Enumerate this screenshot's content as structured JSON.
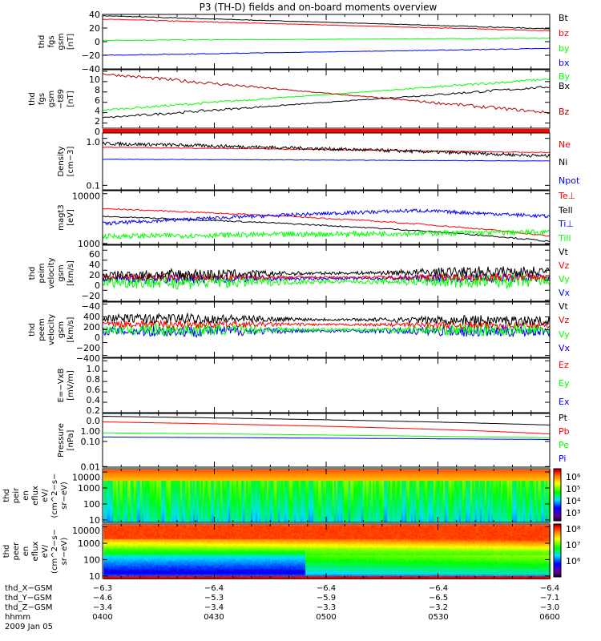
{
  "title": "P3 (TH-D) fields and on-board moments overview",
  "chart_data": {
    "type": "line",
    "title": "P3 (TH-D) fields and on-board moments overview",
    "x_ticks": [
      "0400",
      "0430",
      "0500",
      "0530",
      "0600"
    ],
    "panels": [
      {
        "ylabel": [
          "thd",
          "fgs",
          "gsm",
          "[nT]"
        ],
        "scale": "lin",
        "ylim": [
          -40,
          40
        ],
        "ticks": [
          {
            "v": 40,
            "l": "40"
          },
          {
            "v": 20,
            "l": "20"
          },
          {
            "v": 0,
            "l": "0"
          },
          {
            "v": -20,
            "l": "−20"
          },
          {
            "v": -40,
            "l": "−40"
          }
        ],
        "series": [
          {
            "name": "Bt",
            "color": "#000000",
            "start": 38,
            "end": 19,
            "noise": 0.4
          },
          {
            "name": "bz",
            "color": "#ff0000",
            "start": 33,
            "end": 16,
            "noise": 0.4
          },
          {
            "name": "by",
            "color": "#00ff00",
            "start": 2,
            "end": 5,
            "noise": 0.4
          },
          {
            "name": "bx",
            "color": "#0000ff",
            "start": -20,
            "end": -10,
            "noise": 0.4
          }
        ]
      },
      {
        "ylabel": [
          "thd",
          "fgs",
          "gsm",
          "−t89",
          "[nT]"
        ],
        "scale": "lin",
        "ylim": [
          -1,
          10.3
        ],
        "ticks": [
          {
            "v": 10,
            "l": "10"
          },
          {
            "v": 8,
            "l": "8"
          },
          {
            "v": 6,
            "l": "6"
          },
          {
            "v": 4,
            "l": "4"
          },
          {
            "v": 2,
            "l": "2"
          },
          {
            "v": 0,
            "l": "0"
          }
        ],
        "series": [
          {
            "name": "By",
            "color": "#00ff00",
            "start": 2.5,
            "end": 8.5,
            "noise": 0.15
          },
          {
            "name": "Bx",
            "color": "#000000",
            "start": 1,
            "end": 7,
            "noise": 0.15
          },
          {
            "name": "Bz",
            "color": "#b00000",
            "start": 9.5,
            "end": 2,
            "noise": 0.2
          }
        ]
      },
      {
        "ylabel": [
          "Density",
          "[cm−3]"
        ],
        "scale": "log",
        "ylim": [
          0.08,
          1.3
        ],
        "ticks": [
          {
            "v": 1.0,
            "l": "1.0"
          },
          {
            "v": 0.1,
            "l": "0.1"
          }
        ],
        "series": [
          {
            "name": "Ne",
            "color": "#ff0000",
            "start": 0.65,
            "end": 0.5,
            "noise": 0.02
          },
          {
            "name": "Ni",
            "color": "#000000",
            "start": 0.78,
            "end": 0.42,
            "noise": 0.08
          },
          {
            "name": "Npot",
            "color": "#0000ff",
            "start": 0.36,
            "end": 0.33,
            "noise": 0.01
          }
        ]
      },
      {
        "ylabel": [
          "magt3",
          "[eV]"
        ],
        "scale": "log",
        "ylim": [
          960,
          11500
        ],
        "ticks": [
          {
            "v": 10000,
            "l": "10000"
          },
          {
            "v": 1000,
            "l": "1000"
          }
        ],
        "series": [
          {
            "name": "Te⊥",
            "color": "#ff0000",
            "start": 5000,
            "end": 1400,
            "noise": 0.03
          },
          {
            "name": "Tell",
            "color": "#000000",
            "start": 3500,
            "end": 1100,
            "noise": 0.03
          },
          {
            "name": "Ti⊥",
            "color": "#0000ff",
            "start": 2500,
            "end": 3500,
            "peak": 4600,
            "noise": 0.08
          },
          {
            "name": "Till",
            "color": "#00ff00",
            "start": 1400,
            "end": 1700,
            "noise": 0.12
          }
        ]
      },
      {
        "ylabel": [
          "thd",
          "peim",
          "velocity",
          "gsm",
          "[km/s]"
        ],
        "scale": "lin",
        "ylim": [
          -42,
          70
        ],
        "ticks": [
          {
            "v": 60,
            "l": "60"
          },
          {
            "v": 40,
            "l": "40"
          },
          {
            "v": 20,
            "l": "20"
          },
          {
            "v": 0,
            "l": "0"
          },
          {
            "v": -20,
            "l": "−20"
          },
          {
            "v": -40,
            "l": "−40"
          }
        ],
        "series": [
          {
            "name": "Vx",
            "color": "#0000ff",
            "start": 2,
            "end": 5,
            "noise": 6
          },
          {
            "name": "Vy",
            "color": "#00ff00",
            "start": -4,
            "end": -2,
            "noise": 9
          },
          {
            "name": "Vz",
            "color": "#ff0000",
            "start": 6,
            "end": 6,
            "noise": 5
          },
          {
            "name": "Vt",
            "color": "#000000",
            "start": 10,
            "end": 18,
            "noise": 7
          }
        ]
      },
      {
        "ylabel": [
          "thd",
          "peem",
          "velocity",
          "gsm",
          "[km/s]"
        ],
        "scale": "lin",
        "ylim": [
          -430,
          430
        ],
        "ticks": [
          {
            "v": 400,
            "l": "400"
          },
          {
            "v": 200,
            "l": "200"
          },
          {
            "v": 0,
            "l": "0"
          },
          {
            "v": -200,
            "l": "−200"
          },
          {
            "v": -400,
            "l": "−400"
          }
        ],
        "series": [
          {
            "name": "Vx",
            "color": "#0000ff",
            "start": -20,
            "end": -20,
            "noise": 60
          },
          {
            "name": "Vy",
            "color": "#00ff00",
            "start": 0,
            "end": 0,
            "noise": 60
          },
          {
            "name": "Vz",
            "color": "#ff0000",
            "start": 90,
            "end": 70,
            "noise": 40
          },
          {
            "name": "Vt",
            "color": "#000000",
            "start": 180,
            "end": 140,
            "noise": 50
          }
        ]
      },
      {
        "ylabel": [
          "E=−VxB",
          "[mV/m]"
        ],
        "scale": "lin",
        "ylim": [
          0,
          1.05
        ],
        "ticks": [
          {
            "v": 1.0,
            "l": "1.0"
          },
          {
            "v": 0.8,
            "l": "0.8"
          },
          {
            "v": 0.6,
            "l": "0.6"
          },
          {
            "v": 0.4,
            "l": "0.4"
          },
          {
            "v": 0.2,
            "l": "0.2"
          },
          {
            "v": 0.0,
            "l": "0.0"
          }
        ],
        "series": []
      },
      {
        "ylabel": [
          "Pressure",
          "[nPa]"
        ],
        "scale": "log",
        "ylim": [
          0.0095,
          1.3
        ],
        "ticks": [
          {
            "v": 1.0,
            "l": "1.00"
          },
          {
            "v": 0.1,
            "l": "0.10"
          },
          {
            "v": 0.01,
            "l": "0.01"
          }
        ],
        "series": [
          {
            "name": "Pt",
            "color": "#000000",
            "start": 1.0,
            "end": 0.45,
            "noise": 0.005
          },
          {
            "name": "Pb",
            "color": "#ff0000",
            "start": 0.6,
            "end": 0.2,
            "noise": 0.005
          },
          {
            "name": "Pe",
            "color": "#00ff00",
            "start": 0.22,
            "end": 0.14,
            "noise": 0.004
          },
          {
            "name": "Pi",
            "color": "#0000ff",
            "start": 0.15,
            "end": 0.12,
            "noise": 0.004
          }
        ]
      },
      {
        "ylabel": [
          "thd",
          "peir",
          "en",
          "eflux",
          "eV/",
          "(cm^2−s−",
          "sr−eV)"
        ],
        "scale": "log",
        "ylim": [
          7,
          16000
        ],
        "ticks": [
          {
            "v": 10000,
            "l": "10000"
          },
          {
            "v": 1000,
            "l": "1000"
          },
          {
            "v": 100,
            "l": "100"
          },
          {
            "v": 10,
            "l": "10"
          }
        ],
        "colorbar": [
          "10⁶",
          "10⁵",
          "10⁴",
          "10³"
        ],
        "series": []
      },
      {
        "ylabel": [
          "thd",
          "peer",
          "en",
          "eflux",
          "eV/",
          "(cm^2−s−",
          "sr−eV)"
        ],
        "scale": "log",
        "ylim": [
          7,
          15000
        ],
        "ticks": [
          {
            "v": 10000,
            "l": "10000"
          },
          {
            "v": 1000,
            "l": "1000"
          },
          {
            "v": 100,
            "l": "100"
          },
          {
            "v": 10,
            "l": "10"
          }
        ],
        "colorbar": [
          "10⁸",
          "10⁷",
          "10⁶"
        ],
        "series": []
      }
    ],
    "legends": [
      [
        "Bt",
        "bz",
        "by",
        "bx"
      ],
      [
        "By",
        "Bx",
        "Bz"
      ],
      [],
      [
        "Ne",
        "Ni",
        "Npot"
      ],
      [
        "Te⊥",
        "Tell",
        "Ti⊥",
        "Till"
      ],
      [
        "Vt",
        "Vz",
        "Vy",
        "Vx"
      ],
      [
        "Vt",
        "Vz",
        "Vy",
        "Vx"
      ],
      [
        "Ez",
        "Ey",
        "Ex"
      ],
      [
        "Pt",
        "Pb",
        "Pe",
        "Pi"
      ]
    ],
    "legend_colors": [
      [
        "#000000",
        "#ff0000",
        "#00ff00",
        "#0000ff"
      ],
      [
        "#00ff00",
        "#000000",
        "#b00000"
      ],
      [],
      [
        "#ff0000",
        "#000000",
        "#0000ff"
      ],
      [
        "#ff0000",
        "#000000",
        "#0000ff",
        "#00ff00"
      ],
      [
        "#000000",
        "#ff0000",
        "#00ff00",
        "#0000ff"
      ],
      [
        "#000000",
        "#ff0000",
        "#00ff00",
        "#0000ff"
      ],
      [
        "#ff0000",
        "#00ff00",
        "#0000ff"
      ],
      [
        "#000000",
        "#ff0000",
        "#00ff00",
        "#0000ff"
      ]
    ]
  },
  "ephemeris": {
    "rows": [
      {
        "label": "thd_X−GSM",
        "values": [
          "−6.3",
          "−6.4",
          "−6.4",
          "−6.4",
          "−6.4"
        ]
      },
      {
        "label": "thd_Y−GSM",
        "values": [
          "−4.6",
          "−5.3",
          "−5.9",
          "−6.5",
          "−7.1"
        ]
      },
      {
        "label": "thd_Z−GSM",
        "values": [
          "−3.4",
          "−3.4",
          "−3.3",
          "−3.2",
          "−3.0"
        ]
      },
      {
        "label": "hhmm",
        "values": [
          "0400",
          "0430",
          "0500",
          "0530",
          "0600"
        ]
      }
    ],
    "date": "2009 Jan 05"
  }
}
